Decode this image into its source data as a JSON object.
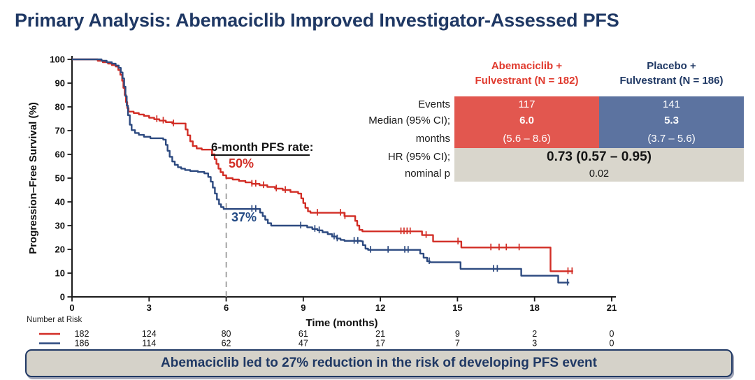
{
  "slide": {
    "title": "Primary Analysis: Abemaciclib Improved Investigator-Assessed PFS",
    "banner": "Abemaciclib led to 27% reduction in the risk of developing PFS event"
  },
  "annotation": {
    "label": "6-month PFS rate",
    "colon": ":",
    "abemaciclib_rate": "50%",
    "placebo_rate": "37%"
  },
  "results_table": {
    "col_headers": [
      {
        "line1": "Abemaciclib +",
        "line2": "Fulvestrant (N = 182)"
      },
      {
        "line1": "Placebo +",
        "line2": "Fulvestrant (N = 186)"
      }
    ],
    "row_labels": {
      "events": "Events",
      "median_1": "Median (95% CI);",
      "median_2": "months",
      "hr_1": "HR (95% CI);",
      "hr_2": "nominal p"
    },
    "abemaciclib": {
      "events": "117",
      "median": "6.0",
      "median_ci": "(5.6 – 8.6)"
    },
    "placebo": {
      "events": "141",
      "median": "5.3",
      "median_ci": "(3.7 – 5.6)"
    },
    "hr_value": "0.73 (0.57 – 0.95)",
    "p_value": "0.02"
  },
  "colors": {
    "title_navy": "#1f3864",
    "abemaciclib_red": "#d22e26",
    "abemaciclib_cell_red": "#e2574f",
    "placebo_navy": "#2d4a80",
    "placebo_cell_blue": "#5c73a0",
    "hr_cell_gray": "#d9d6cc",
    "banner_bg": "#d5d2c9",
    "dashed_line_gray": "#8f8f8f",
    "axis_black": "#1a1a1a"
  },
  "chart_data": {
    "type": "line",
    "subtype": "kaplan-meier-step",
    "title": "",
    "xlabel": "Time (months)",
    "ylabel": "Progression–Free Survival (%)",
    "xlim": [
      0,
      21
    ],
    "ylim": [
      0,
      100
    ],
    "grid": false,
    "xticks": [
      "0",
      "3",
      "6",
      "9",
      "12",
      "15",
      "18",
      "21"
    ],
    "yticks": [
      "0",
      "10",
      "20",
      "30",
      "40",
      "50",
      "60",
      "70",
      "80",
      "90",
      "100"
    ],
    "six_month_marker": {
      "x": 6,
      "label_top_pct": 51.2,
      "abemaciclib_rate_pct": 50,
      "placebo_rate_pct": 37
    },
    "series": [
      {
        "name": "Abemaciclib + Fulvestrant",
        "key": "abemaciclib",
        "color": "#d22e26",
        "steps": [
          [
            0,
            100
          ],
          [
            0.85,
            100
          ],
          [
            1.0,
            99.4
          ],
          [
            1.2,
            98.8
          ],
          [
            1.4,
            98.2
          ],
          [
            1.55,
            97.6
          ],
          [
            1.7,
            97
          ],
          [
            1.8,
            95.5
          ],
          [
            1.88,
            93.5
          ],
          [
            1.95,
            91
          ],
          [
            2.0,
            88
          ],
          [
            2.05,
            85
          ],
          [
            2.1,
            82
          ],
          [
            2.15,
            79.5
          ],
          [
            2.2,
            78
          ],
          [
            2.4,
            77.4
          ],
          [
            2.6,
            76.8
          ],
          [
            2.8,
            76.2
          ],
          [
            3.0,
            75.4
          ],
          [
            3.2,
            74.8
          ],
          [
            3.4,
            74.2
          ],
          [
            3.65,
            73.6
          ],
          [
            3.9,
            73
          ],
          [
            4.35,
            73
          ],
          [
            4.42,
            70.5
          ],
          [
            4.5,
            68
          ],
          [
            4.6,
            65.5
          ],
          [
            4.7,
            63.5
          ],
          [
            4.85,
            62.5
          ],
          [
            5.05,
            62
          ],
          [
            5.35,
            62
          ],
          [
            5.45,
            60
          ],
          [
            5.55,
            58
          ],
          [
            5.62,
            56
          ],
          [
            5.7,
            54
          ],
          [
            5.78,
            52.5
          ],
          [
            5.88,
            51.2
          ],
          [
            6.0,
            50
          ],
          [
            6.25,
            49.4
          ],
          [
            6.5,
            48.8
          ],
          [
            6.75,
            48.2
          ],
          [
            7.0,
            47.6
          ],
          [
            7.3,
            47
          ],
          [
            7.6,
            46.3
          ],
          [
            7.9,
            45.6
          ],
          [
            8.2,
            45
          ],
          [
            8.5,
            44.2
          ],
          [
            8.8,
            43.5
          ],
          [
            8.92,
            41.5
          ],
          [
            9.0,
            39.5
          ],
          [
            9.08,
            37.5
          ],
          [
            9.18,
            36
          ],
          [
            9.28,
            35.4
          ],
          [
            10.5,
            35.4
          ],
          [
            10.6,
            34
          ],
          [
            10.95,
            34
          ],
          [
            11.02,
            32
          ],
          [
            11.1,
            30
          ],
          [
            11.18,
            28.2
          ],
          [
            11.3,
            27.6
          ],
          [
            13.55,
            27.6
          ],
          [
            13.62,
            26
          ],
          [
            13.98,
            26
          ],
          [
            14.05,
            23.3
          ],
          [
            15.08,
            23.3
          ],
          [
            15.15,
            20.8
          ],
          [
            18.55,
            20.8
          ],
          [
            18.62,
            10.8
          ],
          [
            19.5,
            10.8
          ]
        ],
        "censor_months": [
          3.3,
          3.55,
          3.95,
          7.0,
          7.15,
          7.45,
          7.95,
          8.3,
          9.55,
          10.45,
          10.62,
          12.8,
          12.92,
          13.04,
          13.16,
          13.78,
          15.02,
          16.3,
          16.62,
          16.9,
          17.4,
          19.3,
          19.46
        ]
      },
      {
        "name": "Placebo + Fulvestrant",
        "key": "placebo",
        "color": "#2d4a80",
        "steps": [
          [
            0,
            100
          ],
          [
            1.0,
            100
          ],
          [
            1.15,
            99.4
          ],
          [
            1.35,
            98.8
          ],
          [
            1.55,
            98.2
          ],
          [
            1.7,
            97.4
          ],
          [
            1.82,
            96.4
          ],
          [
            1.9,
            94.5
          ],
          [
            1.97,
            92
          ],
          [
            2.03,
            88.5
          ],
          [
            2.08,
            84.5
          ],
          [
            2.13,
            80.5
          ],
          [
            2.18,
            76.5
          ],
          [
            2.25,
            72.5
          ],
          [
            2.32,
            70.2
          ],
          [
            2.45,
            69
          ],
          [
            2.6,
            68.2
          ],
          [
            2.8,
            67.4
          ],
          [
            3.05,
            66.8
          ],
          [
            3.55,
            66.2
          ],
          [
            3.65,
            64
          ],
          [
            3.72,
            61.5
          ],
          [
            3.8,
            59
          ],
          [
            3.9,
            57
          ],
          [
            4.0,
            55.6
          ],
          [
            4.12,
            54.6
          ],
          [
            4.25,
            54
          ],
          [
            4.4,
            53.4
          ],
          [
            4.6,
            53
          ],
          [
            4.9,
            52.6
          ],
          [
            5.15,
            52
          ],
          [
            5.3,
            50.5
          ],
          [
            5.4,
            48.5
          ],
          [
            5.48,
            46
          ],
          [
            5.56,
            43.5
          ],
          [
            5.64,
            41
          ],
          [
            5.72,
            39
          ],
          [
            5.8,
            37.8
          ],
          [
            5.9,
            37
          ],
          [
            7.25,
            37
          ],
          [
            7.32,
            35.5
          ],
          [
            7.42,
            34
          ],
          [
            7.52,
            32.5
          ],
          [
            7.62,
            31
          ],
          [
            7.75,
            30
          ],
          [
            9.05,
            30
          ],
          [
            9.15,
            29.3
          ],
          [
            9.35,
            28.6
          ],
          [
            9.55,
            28
          ],
          [
            9.75,
            27.2
          ],
          [
            9.95,
            26.4
          ],
          [
            10.12,
            25.4
          ],
          [
            10.3,
            24.6
          ],
          [
            10.45,
            24
          ],
          [
            10.6,
            23.6
          ],
          [
            11.25,
            23.4
          ],
          [
            11.32,
            21.8
          ],
          [
            11.42,
            20.3
          ],
          [
            11.52,
            19.8
          ],
          [
            13.45,
            19.8
          ],
          [
            13.55,
            18.2
          ],
          [
            13.68,
            16.5
          ],
          [
            13.82,
            15
          ],
          [
            13.92,
            14.6
          ],
          [
            15.05,
            14.6
          ],
          [
            15.12,
            11.8
          ],
          [
            17.4,
            11.8
          ],
          [
            17.48,
            8.9
          ],
          [
            18.85,
            8.9
          ],
          [
            18.92,
            6
          ],
          [
            19.35,
            6
          ]
        ],
        "censor_months": [
          7.0,
          7.15,
          8.9,
          9.45,
          9.62,
          10.2,
          10.32,
          10.98,
          11.12,
          11.62,
          12.3,
          12.95,
          13.08,
          13.9,
          16.4,
          16.55,
          19.28
        ]
      }
    ],
    "number_at_risk": {
      "label": "Number at Risk",
      "times": [
        0,
        3,
        6,
        9,
        12,
        15,
        18,
        21
      ],
      "rows": [
        {
          "key": "abemaciclib",
          "color": "#d22e26",
          "values": [
            "182",
            "124",
            "80",
            "61",
            "21",
            "9",
            "2",
            "0"
          ]
        },
        {
          "key": "placebo",
          "color": "#2d4a80",
          "values": [
            "186",
            "114",
            "62",
            "47",
            "17",
            "7",
            "3",
            "0"
          ]
        }
      ]
    }
  }
}
